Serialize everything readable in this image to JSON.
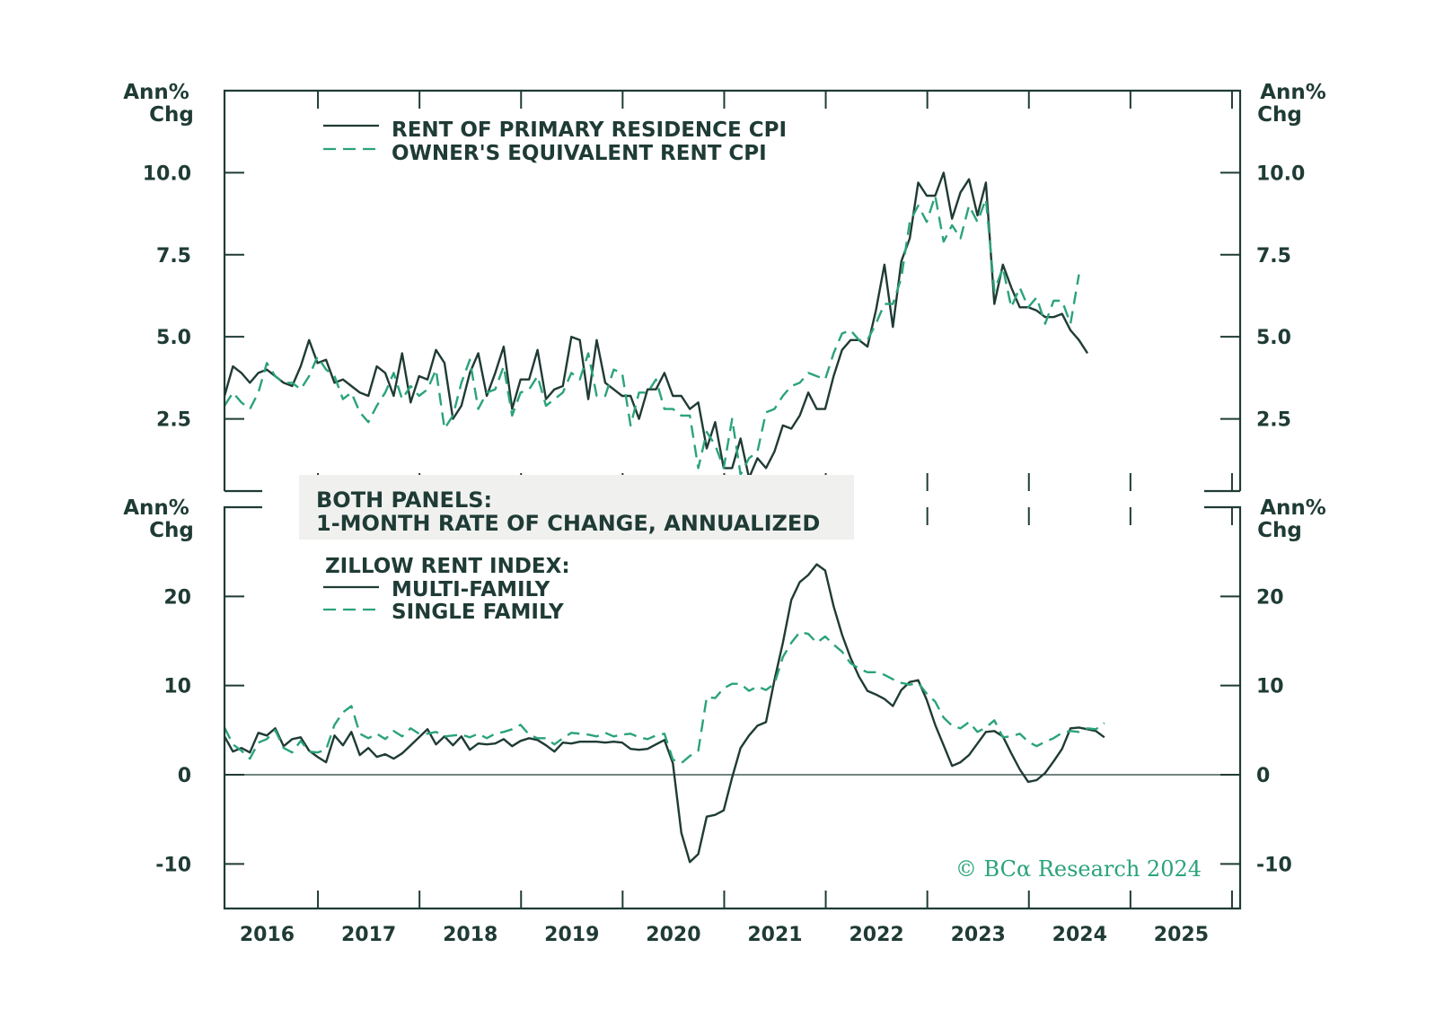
{
  "colors": {
    "dark": "#1f3b35",
    "green": "#2aa37a",
    "note_bg": "#f0f1ef"
  },
  "note": {
    "line1": "BOTH PANELS:",
    "line2": "1-MONTH RATE OF CHANGE, ANNUALIZED"
  },
  "copyright": "© BCα Research 2024",
  "chart_data": [
    {
      "type": "line",
      "panel": "top",
      "unit_label": [
        "Ann%",
        "Chg"
      ],
      "ylim": [
        0.3,
        12.5
      ],
      "y_ticks": [
        2.5,
        5.0,
        7.5,
        10.0
      ],
      "y_tick_labels": [
        "2.5",
        "5.0",
        "7.5",
        "10.0"
      ],
      "xlim": [
        2015.58,
        2025.58
      ],
      "series": [
        {
          "name": "RENT OF PRIMARY RESIDENCE CPI",
          "style": "solid",
          "color": "#1f3b35",
          "x_start": 2015.58,
          "x_step": 0.0833,
          "values": [
            3.2,
            4.1,
            3.9,
            3.6,
            3.9,
            4.0,
            3.8,
            3.6,
            3.5,
            4.1,
            4.9,
            4.2,
            4.3,
            3.6,
            3.7,
            3.5,
            3.3,
            3.2,
            4.1,
            3.9,
            3.2,
            4.5,
            3.0,
            3.8,
            3.7,
            4.6,
            4.2,
            2.5,
            2.9,
            3.9,
            4.5,
            3.2,
            3.9,
            4.7,
            2.8,
            3.7,
            3.7,
            4.6,
            3.1,
            3.4,
            3.5,
            5.0,
            4.9,
            3.1,
            4.9,
            3.6,
            3.4,
            3.2,
            3.2,
            2.5,
            3.4,
            3.4,
            3.9,
            3.2,
            3.2,
            2.8,
            3.0,
            1.6,
            2.4,
            1.0,
            1.0,
            1.9,
            0.7,
            1.3,
            1.0,
            1.5,
            2.3,
            2.2,
            2.6,
            3.3,
            2.8,
            2.8,
            3.8,
            4.6,
            4.9,
            4.9,
            4.7,
            5.8,
            7.2,
            5.3,
            7.3,
            8.0,
            9.7,
            9.3,
            9.3,
            10.0,
            8.6,
            9.4,
            9.8,
            8.7,
            9.7,
            6.0,
            7.2,
            6.5,
            5.9,
            5.9,
            5.8,
            5.6,
            5.6,
            5.7,
            5.2,
            4.9,
            4.5
          ]
        },
        {
          "name": "OWNER'S EQUIVALENT RENT CPI",
          "style": "dashed",
          "color": "#2aa37a",
          "x_start": 2015.58,
          "x_step": 0.0833,
          "values": [
            2.9,
            3.3,
            3.0,
            2.8,
            3.3,
            4.2,
            3.8,
            3.6,
            3.6,
            3.4,
            3.8,
            4.4,
            4.0,
            3.8,
            3.1,
            3.3,
            2.7,
            2.4,
            2.9,
            3.3,
            3.9,
            3.1,
            3.5,
            3.2,
            3.4,
            4.0,
            2.2,
            2.6,
            3.6,
            4.3,
            2.8,
            3.3,
            3.4,
            4.1,
            2.6,
            3.3,
            3.4,
            3.8,
            2.9,
            3.1,
            3.3,
            3.9,
            3.7,
            4.5,
            3.2,
            3.2,
            4.0,
            3.9,
            2.3,
            3.3,
            3.3,
            3.7,
            2.8,
            2.8,
            2.6,
            2.6,
            1.0,
            2.1,
            1.7,
            1.0,
            2.5,
            0.8,
            1.3,
            1.5,
            2.7,
            2.8,
            3.2,
            3.5,
            3.6,
            3.9,
            3.8,
            3.7,
            4.5,
            5.1,
            5.2,
            4.9,
            4.9,
            5.4,
            6.0,
            6.0,
            6.8,
            8.5,
            9.0,
            8.5,
            9.3,
            7.9,
            8.4,
            8.0,
            9.0,
            8.5,
            9.2,
            6.4,
            7.1,
            5.9,
            6.5,
            5.9,
            6.2,
            5.4,
            6.1,
            6.1,
            5.4,
            6.9
          ]
        }
      ]
    },
    {
      "type": "line",
      "panel": "bottom",
      "unit_label": [
        "Ann%",
        "Chg"
      ],
      "ylim": [
        -15,
        30
      ],
      "y_ticks": [
        -10,
        0,
        10,
        20
      ],
      "y_tick_labels": [
        "-10",
        "0",
        "10",
        "20"
      ],
      "zero_line": true,
      "xlim": [
        2015.58,
        2025.58
      ],
      "x_ticks": [
        2016,
        2017,
        2018,
        2019,
        2020,
        2021,
        2022,
        2023,
        2024,
        2025
      ],
      "x_tick_labels": [
        "2016",
        "2017",
        "2018",
        "2019",
        "2020",
        "2021",
        "2022",
        "2023",
        "2024",
        "2025"
      ],
      "legend_title": "ZILLOW RENT INDEX:",
      "series": [
        {
          "name": "MULTI-FAMILY",
          "style": "solid",
          "color": "#1f3b35",
          "x_start": 2015.58,
          "x_step": 0.0833,
          "values": [
            4.3,
            2.6,
            3.0,
            2.5,
            4.7,
            4.4,
            5.2,
            3.2,
            4.0,
            4.2,
            2.7,
            2.0,
            1.4,
            4.4,
            3.3,
            4.8,
            2.2,
            3.0,
            2.0,
            2.3,
            1.8,
            2.4,
            3.3,
            4.2,
            5.1,
            3.4,
            4.3,
            3.3,
            4.3,
            2.8,
            3.5,
            3.4,
            3.5,
            4.0,
            3.2,
            3.8,
            4.1,
            3.9,
            3.3,
            2.6,
            3.6,
            3.5,
            3.7,
            3.7,
            3.7,
            3.6,
            3.7,
            3.6,
            2.9,
            2.8,
            2.9,
            3.4,
            3.9,
            1.3,
            -6.5,
            -9.8,
            -8.9,
            -4.7,
            -4.5,
            -4.0,
            -0.3,
            3.0,
            4.4,
            5.5,
            5.9,
            10.6,
            14.8,
            19.6,
            21.6,
            22.4,
            23.6,
            22.9,
            18.9,
            15.7,
            13.1,
            11.0,
            9.4,
            9.0,
            8.5,
            7.7,
            9.5,
            10.4,
            10.6,
            8.4,
            5.6,
            3.3,
            1.0,
            1.4,
            2.2,
            3.5,
            4.8,
            4.9,
            4.3,
            2.4,
            0.6,
            -0.8,
            -0.6,
            0.2,
            1.5,
            2.9,
            5.2,
            5.3,
            5.1,
            4.9,
            4.2
          ]
        },
        {
          "name": "SINGLE FAMILY",
          "style": "dashed",
          "color": "#2aa37a",
          "x_start": 2015.58,
          "x_step": 0.0833,
          "values": [
            5.3,
            3.4,
            2.7,
            1.8,
            3.6,
            4.0,
            5.0,
            3.0,
            2.5,
            3.8,
            2.6,
            2.5,
            2.8,
            5.6,
            7.0,
            7.7,
            4.6,
            4.1,
            4.6,
            4.0,
            4.9,
            4.3,
            5.2,
            4.6,
            4.6,
            4.8,
            4.3,
            4.4,
            4.5,
            4.2,
            4.6,
            4.1,
            4.6,
            4.8,
            5.1,
            5.6,
            4.5,
            4.1,
            4.1,
            3.4,
            4.1,
            4.7,
            4.6,
            4.5,
            4.3,
            4.7,
            4.3,
            4.5,
            4.6,
            4.2,
            4.0,
            4.4,
            4.6,
            1.7,
            1.3,
            2.1,
            2.7,
            8.7,
            8.6,
            9.7,
            10.2,
            10.2,
            9.4,
            9.9,
            9.5,
            10.2,
            13.2,
            14.8,
            16.0,
            15.8,
            14.8,
            15.5,
            14.6,
            13.8,
            12.5,
            11.9,
            11.5,
            11.5,
            11.2,
            10.7,
            10.3,
            10.1,
            10.3,
            9.1,
            8.2,
            6.4,
            5.5,
            5.2,
            5.9,
            4.8,
            5.3,
            6.1,
            4.2,
            4.3,
            4.6,
            3.7,
            3.2,
            3.7,
            4.1,
            4.7,
            4.9,
            4.8,
            5.2,
            5.1,
            5.8
          ]
        }
      ]
    }
  ]
}
